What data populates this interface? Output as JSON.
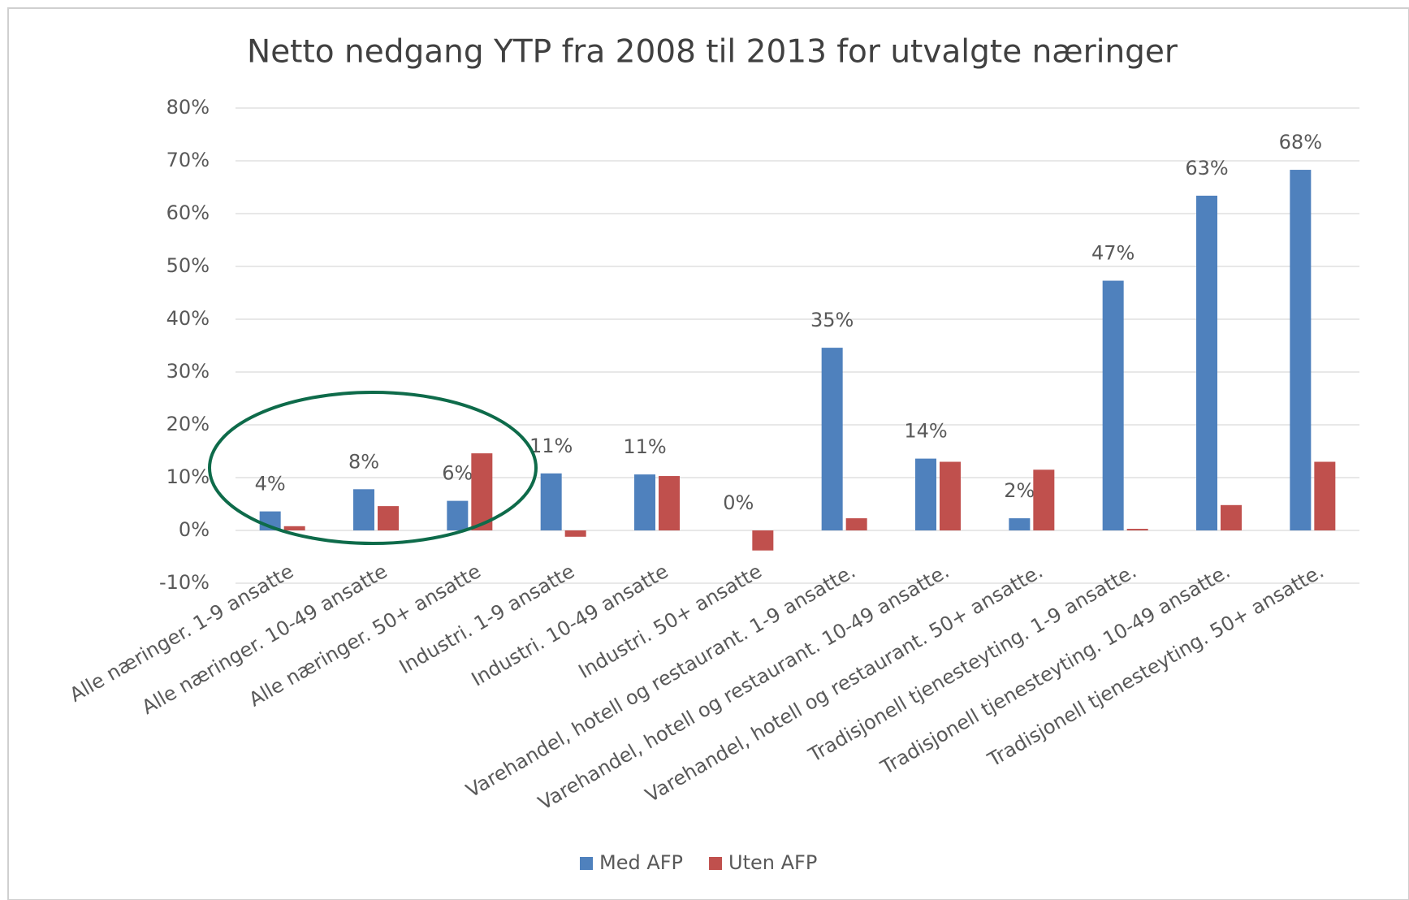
{
  "chart_data": {
    "type": "bar",
    "title": "Netto nedgang YTP fra 2008 til 2013 for utvalgte næringer",
    "categories": [
      "Alle næringer. 1-9 ansatte",
      "Alle næringer. 10-49 ansatte",
      "Alle næringer. 50+ ansatte",
      "Industri. 1-9 ansatte",
      "Industri. 10-49 ansatte",
      "Industri. 50+ ansatte",
      "Varehandel, hotell og restaurant. 1-9 ansatte.",
      "Varehandel, hotell og restaurant. 10-49 ansatte.",
      "Varehandel, hotell og restaurant. 50+ ansatte.",
      "Tradisjonell tjenesteyting. 1-9 ansatte.",
      "Tradisjonell tjenesteyting. 10-49 ansatte.",
      "Tradisjonell tjenesteyting. 50+ ansatte."
    ],
    "series": [
      {
        "name": "Med AFP",
        "color": "#4f81bd",
        "values": [
          3.6,
          7.8,
          5.6,
          10.8,
          10.6,
          0,
          34.6,
          13.6,
          2.3,
          47.3,
          63.4,
          68.3
        ],
        "value_labels": [
          "4%",
          "8%",
          "6%",
          "11%",
          "11%",
          "0%",
          "35%",
          "14%",
          "2%",
          "47%",
          "63%",
          "68%"
        ]
      },
      {
        "name": "Uten AFP",
        "color": "#c0504d",
        "values": [
          0.8,
          4.6,
          14.6,
          -1.2,
          10.3,
          -3.8,
          2.3,
          13.0,
          11.5,
          0.3,
          4.8,
          13.0
        ]
      }
    ],
    "ylim": [
      -10,
      80
    ],
    "yticks": [
      {
        "value": -10,
        "label": "-10%"
      },
      {
        "value": 0,
        "label": "0%"
      },
      {
        "value": 10,
        "label": "10%"
      },
      {
        "value": 20,
        "label": "20%"
      },
      {
        "value": 30,
        "label": "30%"
      },
      {
        "value": 40,
        "label": "40%"
      },
      {
        "value": 50,
        "label": "50%"
      },
      {
        "value": 60,
        "label": "60%"
      },
      {
        "value": 70,
        "label": "70%"
      },
      {
        "value": 80,
        "label": "80%"
      }
    ],
    "grid": true,
    "legend": "bottom"
  }
}
